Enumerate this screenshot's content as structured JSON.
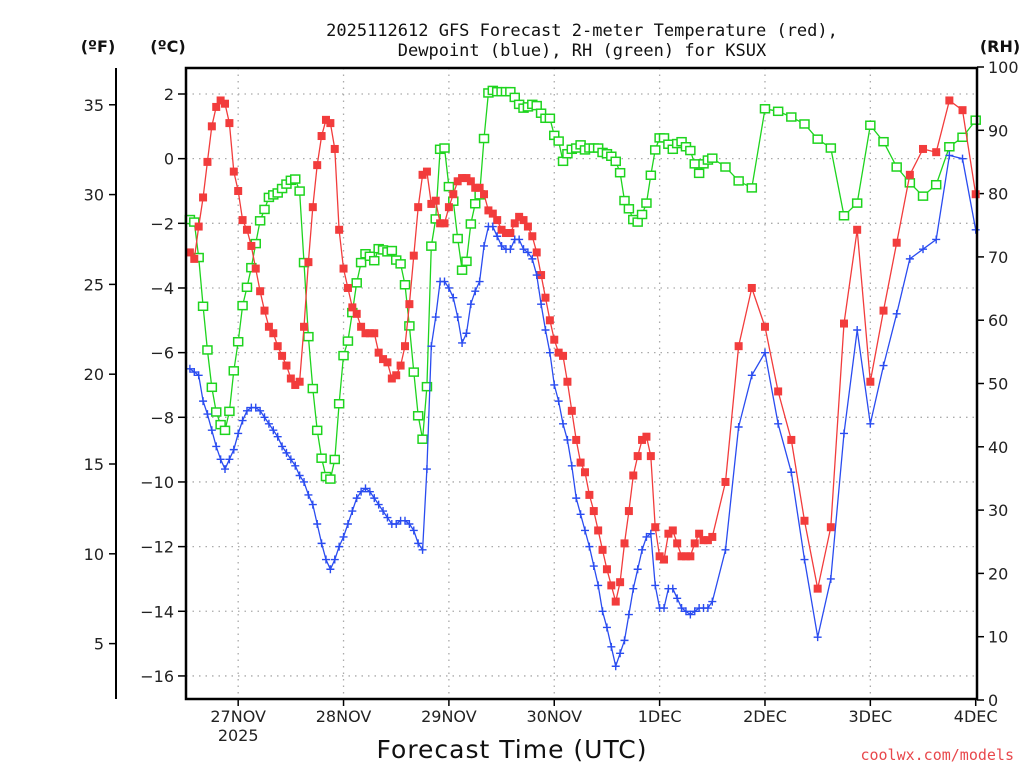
{
  "chart_data": {
    "type": "line",
    "title_line1": "2025112612 GFS Forecast 2-meter Temperature (red),",
    "title_line2": "Dewpoint (blue), RH (green) for KSUX",
    "xlabel": "Forecast Time (UTC)",
    "ylabel_left_outer": "(ºF)",
    "ylabel_left": "(ºC)",
    "ylabel_right": "(RH)",
    "credit": "coolwx.com/models",
    "x_unit": "forecast hour",
    "xlim": [
      0,
      180
    ],
    "ylim_c": [
      -17.5,
      2.8
    ],
    "ylim_rh": [
      0,
      100
    ],
    "grid": true,
    "x_ticks": [
      {
        "hour": 12,
        "label": "27NOV",
        "sub": "2025"
      },
      {
        "hour": 36,
        "label": "28NOV"
      },
      {
        "hour": 60,
        "label": "29NOV"
      },
      {
        "hour": 84,
        "label": "30NOV"
      },
      {
        "hour": 108,
        "label": "1DEC"
      },
      {
        "hour": 132,
        "label": "2DEC"
      },
      {
        "hour": 156,
        "label": "3DEC"
      },
      {
        "hour": 180,
        "label": "4DEC"
      }
    ],
    "c_ticks": [
      "2",
      "0",
      "-2",
      "-4",
      "-6",
      "-8",
      "-10",
      "-12",
      "-14",
      "-16"
    ],
    "f_ticks": [
      "35",
      "30",
      "25",
      "20",
      "15",
      "10",
      "5"
    ],
    "rh_ticks": [
      "0",
      "10",
      "20",
      "30",
      "40",
      "50",
      "60",
      "70",
      "80",
      "90",
      "100"
    ],
    "x": [
      1,
      2,
      3,
      4,
      5,
      6,
      7,
      8,
      9,
      10,
      11,
      12,
      13,
      14,
      15,
      16,
      17,
      18,
      19,
      20,
      21,
      22,
      23,
      24,
      25,
      26,
      27,
      28,
      29,
      30,
      31,
      32,
      33,
      34,
      35,
      36,
      37,
      38,
      39,
      40,
      41,
      42,
      43,
      44,
      45,
      46,
      47,
      48,
      49,
      50,
      51,
      52,
      53,
      54,
      55,
      56,
      57,
      58,
      59,
      60,
      61,
      62,
      63,
      64,
      65,
      66,
      67,
      68,
      69,
      70,
      71,
      72,
      73,
      74,
      75,
      76,
      77,
      78,
      79,
      80,
      81,
      82,
      83,
      84,
      85,
      86,
      87,
      88,
      89,
      90,
      91,
      92,
      93,
      94,
      95,
      96,
      97,
      98,
      99,
      100,
      101,
      102,
      103,
      104,
      105,
      106,
      107,
      108,
      109,
      110,
      111,
      112,
      113,
      114,
      115,
      116,
      117,
      118,
      119,
      120,
      123,
      126,
      129,
      132,
      135,
      138,
      141,
      144,
      147,
      150,
      153,
      156,
      159,
      162,
      165,
      168,
      171,
      174,
      177,
      180
    ],
    "series": [
      {
        "name": "Temperature (ºC)",
        "color": "#f23c3c",
        "axis": "c",
        "marker": "filled-square",
        "values": [
          -2.9,
          -3.1,
          -2.1,
          -1.2,
          -0.1,
          1.0,
          1.6,
          1.8,
          1.7,
          1.1,
          -0.4,
          -1.0,
          -1.9,
          -2.2,
          -2.7,
          -3.4,
          -4.1,
          -4.7,
          -5.2,
          -5.4,
          -5.8,
          -6.1,
          -6.4,
          -6.8,
          -7.0,
          -6.9,
          -5.2,
          -3.2,
          -1.5,
          -0.2,
          0.7,
          1.2,
          1.1,
          0.3,
          -2.2,
          -3.4,
          -4.0,
          -4.6,
          -4.8,
          -5.2,
          -5.4,
          -5.4,
          -5.4,
          -6.0,
          -6.2,
          -6.3,
          -6.8,
          -6.7,
          -6.4,
          -5.8,
          -4.5,
          -3.0,
          -1.5,
          -0.5,
          -0.4,
          -1.4,
          -1.3,
          -2.0,
          -2.0,
          -1.5,
          -1.1,
          -0.7,
          -0.6,
          -0.6,
          -0.7,
          -0.9,
          -0.9,
          -1.1,
          -1.6,
          -1.7,
          -1.9,
          -2.2,
          -2.3,
          -2.3,
          -2.0,
          -1.8,
          -1.9,
          -2.1,
          -2.4,
          -2.9,
          -3.6,
          -4.3,
          -5.0,
          -5.6,
          -6.0,
          -6.1,
          -6.9,
          -7.8,
          -8.7,
          -9.4,
          -9.7,
          -10.4,
          -10.9,
          -11.5,
          -12.1,
          -12.7,
          -13.2,
          -13.7,
          -13.1,
          -11.9,
          -10.9,
          -9.8,
          -9.2,
          -8.7,
          -8.6,
          -9.2,
          -11.4,
          -12.3,
          -12.4,
          -11.6,
          -11.5,
          -11.9,
          -12.3,
          -12.3,
          -12.3,
          -11.9,
          -11.6,
          -11.8,
          -11.8,
          -11.7,
          -10.0,
          -5.8,
          -4.0,
          -5.2,
          -7.2,
          -8.7,
          -11.2,
          -13.3,
          -11.4,
          -5.1,
          -2.2,
          -6.9,
          -4.7,
          -2.6,
          -0.5,
          0.3,
          0.2,
          1.8,
          1.5,
          -1.1
        ]
      },
      {
        "name": "Dewpoint (ºC)",
        "color": "#2a4cf0",
        "axis": "c",
        "marker": "plus",
        "values": [
          -6.5,
          -6.6,
          -6.7,
          -7.5,
          -7.9,
          -8.4,
          -8.9,
          -9.3,
          -9.6,
          -9.3,
          -9.0,
          -8.5,
          -8.1,
          -7.8,
          -7.7,
          -7.7,
          -7.8,
          -8.0,
          -8.2,
          -8.4,
          -8.6,
          -8.9,
          -9.1,
          -9.3,
          -9.5,
          -9.8,
          -10.0,
          -10.4,
          -10.7,
          -11.3,
          -11.9,
          -12.4,
          -12.7,
          -12.4,
          -12.0,
          -11.7,
          -11.3,
          -10.9,
          -10.5,
          -10.3,
          -10.2,
          -10.3,
          -10.5,
          -10.7,
          -10.9,
          -11.1,
          -11.3,
          -11.3,
          -11.2,
          -11.2,
          -11.3,
          -11.5,
          -11.9,
          -12.1,
          -9.6,
          -5.8,
          -4.9,
          -3.8,
          -3.8,
          -4.0,
          -4.3,
          -4.9,
          -5.7,
          -5.4,
          -4.5,
          -4.1,
          -3.8,
          -2.7,
          -2.1,
          -2.1,
          -2.4,
          -2.7,
          -2.8,
          -2.8,
          -2.5,
          -2.5,
          -2.8,
          -2.9,
          -3.1,
          -3.6,
          -4.5,
          -5.3,
          -6.0,
          -7.0,
          -7.5,
          -8.2,
          -8.7,
          -9.5,
          -10.5,
          -11.0,
          -11.5,
          -12.0,
          -12.6,
          -13.2,
          -14.0,
          -14.5,
          -15.1,
          -15.7,
          -15.3,
          -14.9,
          -14.1,
          -13.3,
          -12.7,
          -12.1,
          -11.7,
          -11.6,
          -13.2,
          -13.9,
          -13.9,
          -13.3,
          -13.3,
          -13.6,
          -13.9,
          -14.0,
          -14.1,
          -14.0,
          -13.9,
          -13.9,
          -13.9,
          -13.7,
          -12.1,
          -8.3,
          -6.7,
          -6.0,
          -8.2,
          -9.7,
          -12.4,
          -14.8,
          -13.0,
          -8.5,
          -5.3,
          -8.2,
          -6.4,
          -4.8,
          -3.1,
          -2.8,
          -2.5,
          0.1,
          0.0,
          -2.2
        ]
      },
      {
        "name": "RH (%)",
        "color": "#1ed41e",
        "axis": "rh",
        "marker": "open-square",
        "values": [
          75.9,
          75.5,
          69.9,
          62.2,
          55.3,
          49.4,
          45.5,
          43.5,
          42.6,
          45.6,
          52.0,
          56.6,
          62.3,
          65.2,
          68.3,
          72.1,
          75.7,
          77.5,
          79.4,
          79.8,
          80.1,
          80.8,
          81.5,
          82.1,
          82.3,
          80.4,
          69.1,
          57.4,
          49.2,
          42.6,
          38.2,
          35.3,
          34.9,
          38.0,
          46.8,
          54.4,
          56.7,
          61.2,
          65.9,
          69.1,
          70.5,
          70.1,
          69.4,
          71.3,
          71.1,
          70.8,
          71.0,
          69.5,
          68.9,
          65.6,
          59.1,
          51.8,
          44.9,
          41.2,
          49.5,
          71.7,
          76.0,
          87.0,
          87.2,
          81.1,
          78.8,
          72.9,
          67.9,
          69.3,
          75.2,
          78.4,
          79.8,
          88.7,
          95.9,
          96.3,
          96.1,
          96.1,
          96.1,
          96.1,
          95.2,
          94.1,
          93.5,
          93.7,
          94.1,
          93.9,
          92.7,
          91.9,
          91.9,
          89.2,
          88.3,
          85.1,
          86.3,
          87.0,
          87.2,
          87.7,
          86.9,
          87.2,
          87.2,
          87.2,
          86.5,
          86.3,
          85.9,
          85.1,
          83.3,
          78.9,
          77.6,
          75.9,
          75.5,
          76.7,
          78.5,
          82.9,
          86.9,
          88.8,
          88.8,
          87.8,
          87.0,
          87.9,
          88.2,
          87.4,
          86.8,
          84.7,
          83.2,
          84.7,
          85.3,
          85.6,
          84.2,
          82.0,
          80.9,
          93.4,
          93.0,
          92.1,
          91.0,
          88.6,
          87.2,
          76.5,
          78.5,
          90.8,
          88.2,
          84.2,
          81.7,
          79.6,
          81.4,
          87.4,
          88.9,
          91.6
        ]
      }
    ]
  }
}
